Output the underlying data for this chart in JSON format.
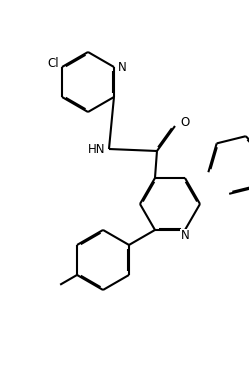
{
  "bg": "#ffffff",
  "lc": "#000000",
  "lw": 1.5,
  "fs": 8.5,
  "doff": 0.012,
  "figsize": [
    2.49,
    3.7
  ],
  "dpi": 100,
  "xl": [
    0,
    2.49
  ],
  "yl": [
    0,
    3.7
  ]
}
